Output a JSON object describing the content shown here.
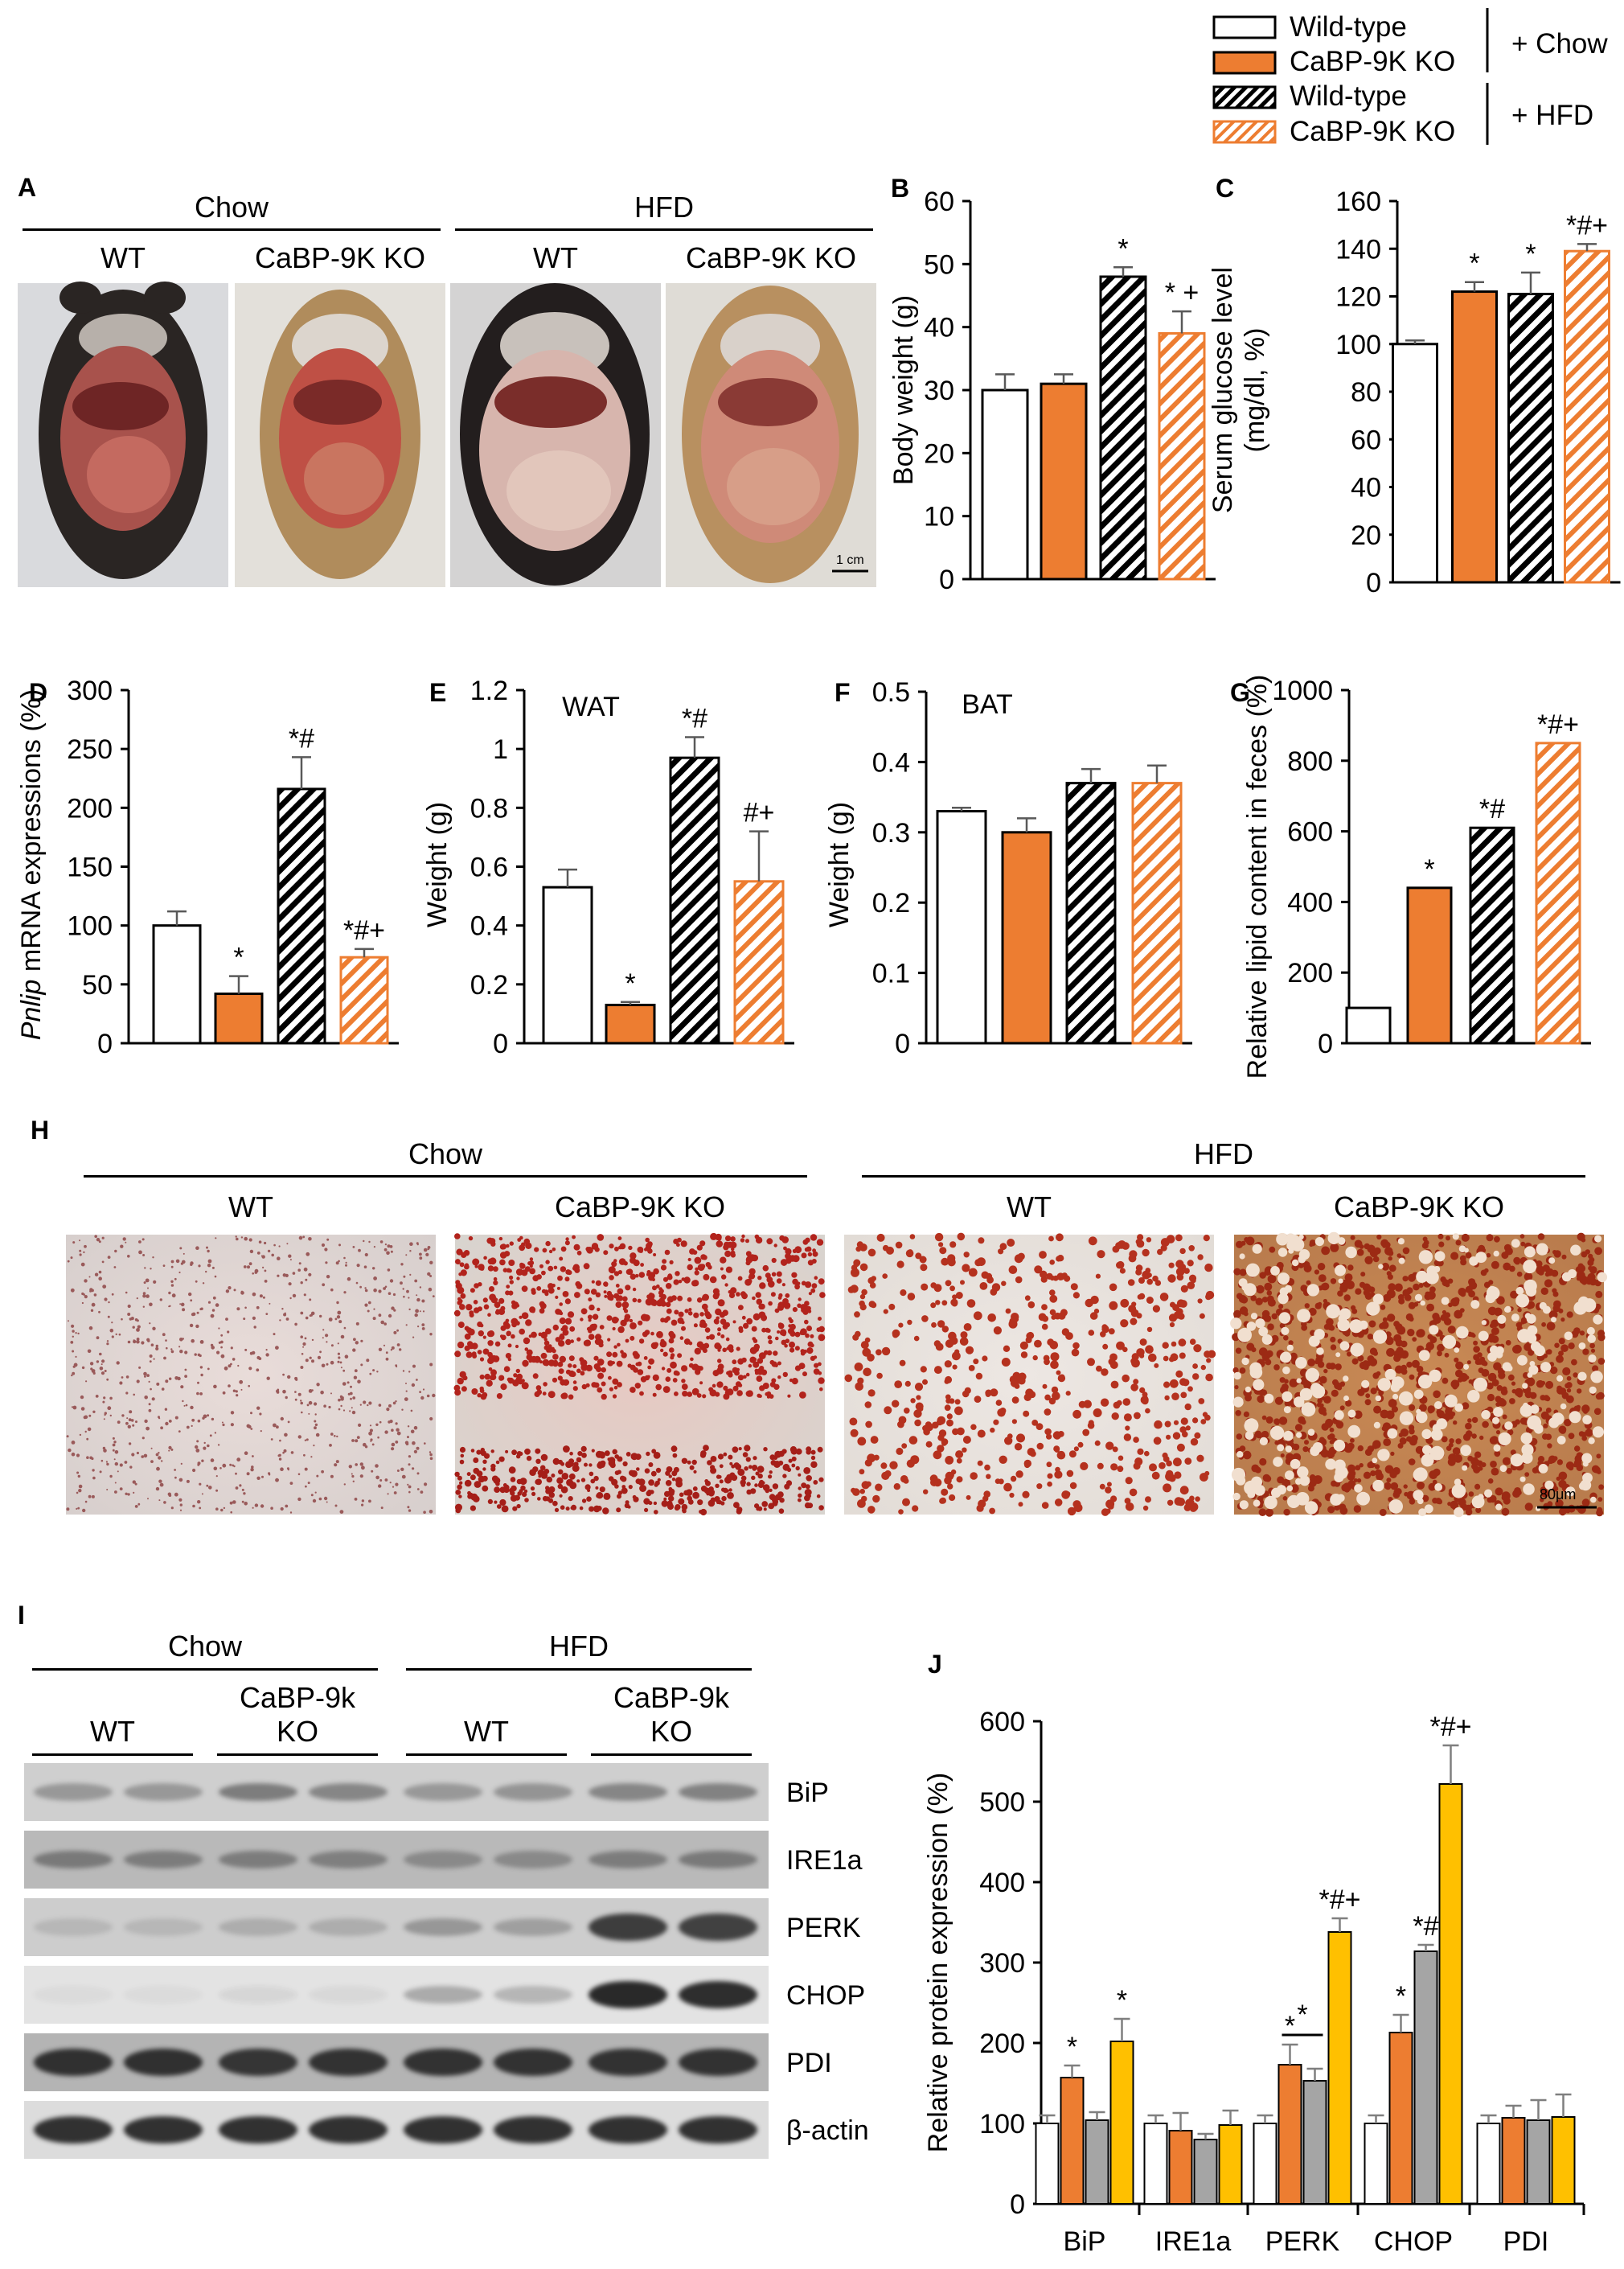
{
  "legend": {
    "items": [
      {
        "label": "Wild-type",
        "fill": "white"
      },
      {
        "label": "CaBP-9K KO",
        "fill": "orange"
      },
      {
        "label": "Wild-type",
        "fill": "black-hatch"
      },
      {
        "label": "CaBP-9K KO",
        "fill": "orange-hatch"
      }
    ],
    "group_chow": "+ Chow",
    "group_hfd": "+ HFD"
  },
  "panel_a": {
    "letter": "A",
    "group_left": "Chow",
    "group_right": "HFD",
    "cols": [
      "WT",
      "CaBP-9K KO",
      "WT",
      "CaBP-9K KO"
    ],
    "scale": "1 cm"
  },
  "panel_h": {
    "letter": "H",
    "group_left": "Chow",
    "group_right": "HFD",
    "cols": [
      "WT",
      "CaBP-9K KO",
      "WT",
      "CaBP-9K KO"
    ],
    "scale": "80μm"
  },
  "panel_i": {
    "letter": "I",
    "group_left": "Chow",
    "group_right": "HFD",
    "sub_wt1": "WT",
    "sub_ko1_line1": "CaBP-9k",
    "sub_ko1_line2": "KO",
    "sub_wt2": "WT",
    "sub_ko2_line1": "CaBP-9k",
    "sub_ko2_line2": "KO",
    "proteins": [
      "BiP",
      "IRE1a",
      "PERK",
      "CHOP",
      "PDI",
      "β-actin"
    ]
  },
  "colors": {
    "orange": "#ed7d31",
    "yellow": "#ffc000",
    "gray": "#a5a5a5",
    "black": "#000000"
  },
  "chart_data": [
    {
      "letter": "B",
      "type": "bar",
      "ylabel": "Body weight (g)",
      "title": "",
      "ylim": [
        0,
        60
      ],
      "yticks": [
        0,
        10,
        20,
        30,
        40,
        50,
        60
      ],
      "values": [
        30,
        31,
        48,
        39
      ],
      "errors": [
        2.5,
        1.5,
        1.5,
        3.5
      ],
      "annotations": [
        "",
        "",
        "*",
        "* +"
      ]
    },
    {
      "letter": "C",
      "type": "bar",
      "ylabel": "Serum glucose level\n(mg/dl, %)",
      "title": "",
      "ylim": [
        0,
        160
      ],
      "yticks": [
        0,
        20,
        40,
        60,
        80,
        100,
        120,
        140,
        160
      ],
      "values": [
        100,
        122,
        121,
        139
      ],
      "errors": [
        1.5,
        4,
        9,
        3
      ],
      "annotations": [
        "",
        "*",
        "*",
        "*#+"
      ]
    },
    {
      "letter": "D",
      "type": "bar",
      "ylabel": "Pnlip mRNA expressions (%)",
      "title": "",
      "ylim": [
        0,
        300
      ],
      "yticks": [
        0,
        50,
        100,
        150,
        200,
        250,
        300
      ],
      "values": [
        100,
        42,
        216,
        73
      ],
      "errors": [
        12,
        15,
        27,
        7
      ],
      "annotations": [
        "",
        "*",
        "*#",
        "*#+"
      ]
    },
    {
      "letter": "E",
      "type": "bar",
      "ylabel": "Weight (g)",
      "title": "WAT",
      "ylim": [
        0,
        1.2
      ],
      "yticks": [
        0,
        0.2,
        0.4,
        0.6,
        0.8,
        1,
        1.2
      ],
      "values": [
        0.53,
        0.13,
        0.97,
        0.55
      ],
      "errors": [
        0.06,
        0.01,
        0.07,
        0.17
      ],
      "annotations": [
        "",
        "*",
        "*#",
        "#+"
      ]
    },
    {
      "letter": "F",
      "type": "bar",
      "ylabel": "Weight (g)",
      "title": "BAT",
      "ylim": [
        0,
        0.5
      ],
      "yticks": [
        0,
        0.1,
        0.2,
        0.3,
        0.4,
        0.5
      ],
      "values": [
        0.33,
        0.3,
        0.37,
        0.37
      ],
      "errors": [
        0.005,
        0.02,
        0.02,
        0.025
      ],
      "annotations": [
        "",
        "",
        "",
        ""
      ]
    },
    {
      "letter": "G",
      "type": "bar",
      "ylabel": "Relative  lipid content in feces (%)",
      "title": "",
      "ylim": [
        0,
        1000
      ],
      "yticks": [
        0,
        200,
        400,
        600,
        800,
        1000
      ],
      "values": [
        100,
        440,
        610,
        850
      ],
      "errors": [
        0,
        0,
        0,
        0
      ],
      "annotations": [
        "",
        "*",
        "*#",
        "*#+"
      ]
    },
    {
      "letter": "J",
      "type": "bar",
      "ylabel": "Relative protein expression (%)",
      "title": "",
      "ylim": [
        0,
        600
      ],
      "yticks": [
        0,
        100,
        200,
        300,
        400,
        500,
        600
      ],
      "categories": [
        "BiP",
        "IRE1a",
        "PERK",
        "CHOP",
        "PDI"
      ],
      "series": [
        {
          "values": [
            100,
            100,
            100,
            100,
            100
          ],
          "errors": [
            10,
            10,
            10,
            10,
            10
          ]
        },
        {
          "values": [
            157,
            91,
            173,
            213,
            107
          ],
          "errors": [
            15,
            22,
            25,
            22,
            15
          ]
        },
        {
          "values": [
            104,
            80,
            153,
            314,
            104
          ],
          "errors": [
            10,
            7,
            15,
            8,
            25
          ]
        },
        {
          "values": [
            202,
            98,
            338,
            522,
            108
          ],
          "errors": [
            28,
            18,
            17,
            48,
            28
          ]
        }
      ],
      "annotations": [
        [
          "",
          "*",
          "",
          "*"
        ],
        [
          "",
          "",
          "",
          ""
        ],
        [
          "",
          "*",
          "",
          "*#+"
        ],
        [
          "",
          "*",
          "*#",
          "*#+"
        ],
        [
          "",
          "",
          "",
          ""
        ]
      ]
    }
  ]
}
